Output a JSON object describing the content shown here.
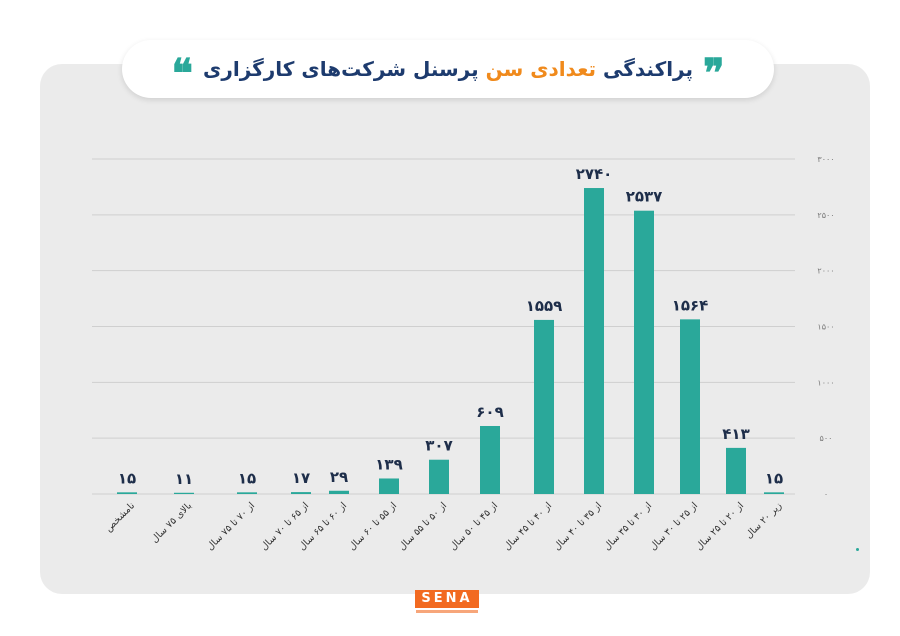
{
  "header": {
    "quote_open": "❞",
    "quote_close": "❝",
    "title_part1": "پراکندگی",
    "title_part2": "تعدادی سن",
    "title_part3": "پرسنل شرکت‌های کارگزاری"
  },
  "logo": {
    "text": "SENA"
  },
  "colors": {
    "bar": "#2aa89a",
    "title_dark": "#1d3b6e",
    "title_accent": "#f08a1c"
  },
  "chart_data": {
    "type": "bar",
    "title": "پراکندگی تعدادی سن پرسنل شرکت‌های کارگزاری",
    "xlabel": "",
    "ylabel": "",
    "ylim": [
      0,
      3000
    ],
    "yticks": [
      0,
      500,
      1000,
      1500,
      2000,
      2500,
      3000
    ],
    "ytick_labels": [
      "۰",
      "۵۰۰",
      "۱۰۰۰",
      "۱۵۰۰",
      "۲۰۰۰",
      "۲۵۰۰",
      "۳۰۰۰"
    ],
    "categories": [
      "نامشخص",
      "بالای ۷۵ سال",
      "از ۷۰ تا ۷۵ سال",
      "از ۶۵ تا ۷۰ سال",
      "از ۶۰ تا ۶۵ سال",
      "از ۵۵ تا ۶۰ سال",
      "از ۵۰ تا ۵۵ سال",
      "از ۴۵ تا ۵۰ سال",
      "از ۴۰ تا ۴۵ سال",
      "از ۳۵ تا ۴۰ سال",
      "از ۳۰ تا ۳۵ سال",
      "از ۲۵ تا ۳۰ سال",
      "از ۲۰ تا ۲۵ سال",
      "زیر ۲۰ سال"
    ],
    "values": [
      15,
      11,
      15,
      17,
      29,
      139,
      307,
      609,
      1559,
      2740,
      2537,
      1564,
      413,
      15
    ],
    "value_labels": [
      "۱۵",
      "۱۱",
      "۱۵",
      "۱۷",
      "۲۹",
      "۱۳۹",
      "۳۰۷",
      "۶۰۹",
      "۱۵۵۹",
      "۲۷۴۰",
      "۲۵۳۷",
      "۱۵۶۴",
      "۴۱۳",
      "۱۵"
    ],
    "grid": true,
    "legend": "none"
  }
}
